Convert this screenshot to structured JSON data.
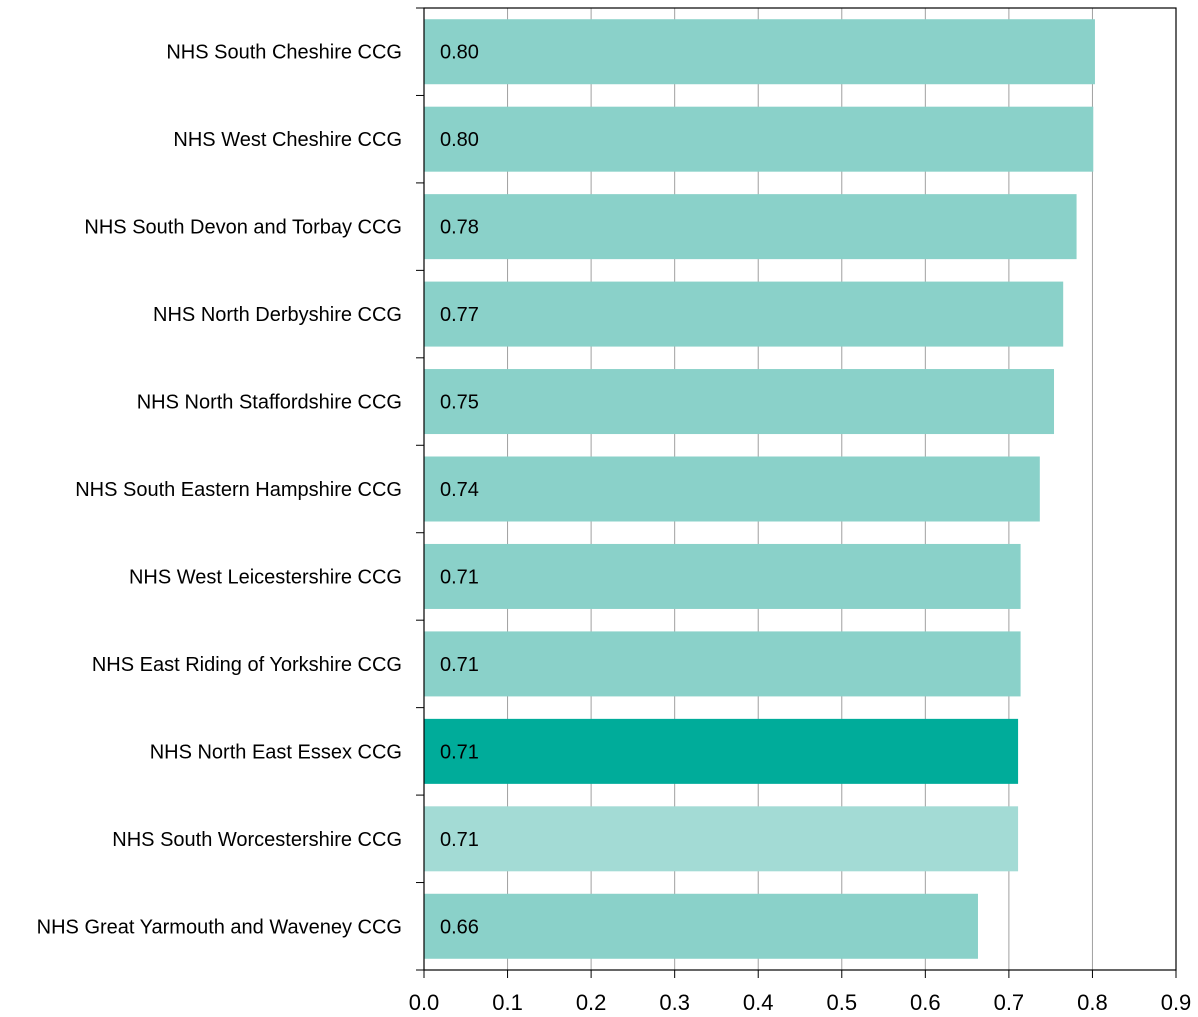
{
  "chart_data": {
    "type": "bar",
    "orientation": "horizontal",
    "title": "",
    "xlabel": "",
    "ylabel": "",
    "xlim": [
      0,
      0.9
    ],
    "x_ticks": [
      "0.0",
      "0.1",
      "0.2",
      "0.3",
      "0.4",
      "0.5",
      "0.6",
      "0.7",
      "0.8",
      "0.9"
    ],
    "grid": "vertical",
    "categories": [
      "NHS South Cheshire CCG",
      "NHS West Cheshire CCG",
      "NHS South Devon and Torbay CCG",
      "NHS North Derbyshire CCG",
      "NHS North Staffordshire CCG",
      "NHS South Eastern Hampshire CCG",
      "NHS West Leicestershire CCG",
      "NHS East Riding of Yorkshire CCG",
      "NHS North East Essex CCG",
      "NHS South Worcestershire CCG",
      "NHS Great Yarmouth and Waveney CCG"
    ],
    "values": [
      0.803,
      0.801,
      0.781,
      0.765,
      0.754,
      0.737,
      0.714,
      0.714,
      0.711,
      0.711,
      0.663
    ],
    "data_labels": [
      "0.80",
      "0.80",
      "0.78",
      "0.77",
      "0.75",
      "0.74",
      "0.71",
      "0.71",
      "0.71",
      "0.71",
      "0.66"
    ],
    "bar_colors": [
      "#8ad1c9",
      "#8ad1c9",
      "#8ad1c9",
      "#8ad1c9",
      "#8ad1c9",
      "#8ad1c9",
      "#8ad1c9",
      "#8ad1c9",
      "#00ac9a",
      "#a3dbd5",
      "#8ad1c9"
    ],
    "gridline_color": "#a0a0a0",
    "axis_color": "#000000"
  }
}
